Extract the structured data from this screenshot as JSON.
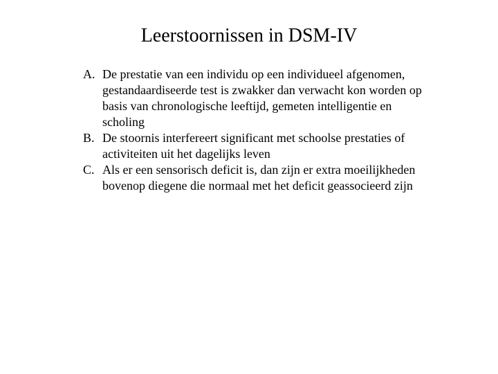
{
  "title": "Leerstoornissen in DSM-IV",
  "criteria": {
    "a": {
      "label": "A.",
      "text": "De prestatie van een individu op een individueel afgenomen, gestandaardiseerde test is zwakker dan verwacht kon worden op basis van chronologische leeftijd, gemeten intelligentie en scholing"
    },
    "b": {
      "label": "B.",
      "text": "De stoornis interfereert significant met schoolse prestaties of activiteiten uit het dagelijks leven"
    },
    "c": {
      "label": "C.",
      "text": "Als er een sensorisch deficit is, dan zijn er extra moeilijkheden bovenop diegene die normaal met het deficit geassocieerd zijn"
    }
  },
  "styling": {
    "background_color": "#ffffff",
    "text_color": "#000000",
    "font_family": "Times New Roman",
    "title_fontsize": 28,
    "body_fontsize": 18,
    "line_height": 1.28
  }
}
